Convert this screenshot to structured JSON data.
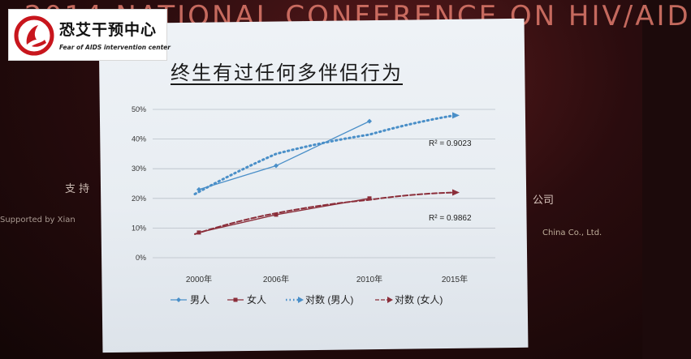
{
  "background": {
    "banner": "2014 NATIONAL CONFERENCE ON HIV/AID",
    "left_caption": "支  持",
    "left_sub": "Supported by  Xian",
    "right_caption": "公司",
    "right_sub": "China Co., Ltd."
  },
  "logo": {
    "name_cn": "恐艾干预中心",
    "name_en": "Fear of AIDS intervention center",
    "icon": "ribbon-hand-logo"
  },
  "colors": {
    "men": "#4a8fc8",
    "women": "#8b2e3a",
    "slide_bg": "#e8edf2"
  },
  "chart_data": {
    "type": "line",
    "title": "终生有过任何多伴侣行为",
    "categories": [
      "2000年",
      "2006年",
      "2010年",
      "2015年"
    ],
    "ylim": [
      0,
      50
    ],
    "yticks": [
      "0%",
      "10%",
      "20%",
      "30%",
      "40%",
      "50%"
    ],
    "series": [
      {
        "name": "男人",
        "values": [
          23,
          31,
          46,
          null
        ],
        "style": "solid"
      },
      {
        "name": "女人",
        "values": [
          8.5,
          14.5,
          20,
          null
        ],
        "style": "solid"
      },
      {
        "name": "对数 (男人)",
        "values": [
          22,
          35,
          41.5,
          48
        ],
        "style": "dotted"
      },
      {
        "name": "对数 (女人)",
        "values": [
          8.5,
          15,
          19.5,
          22
        ],
        "style": "dashed"
      }
    ],
    "annotations": [
      {
        "text": "R² = 0.9023",
        "series": "男人"
      },
      {
        "text": "R² = 0.9862",
        "series": "女人"
      }
    ],
    "grid": true,
    "legend_position": "bottom"
  }
}
